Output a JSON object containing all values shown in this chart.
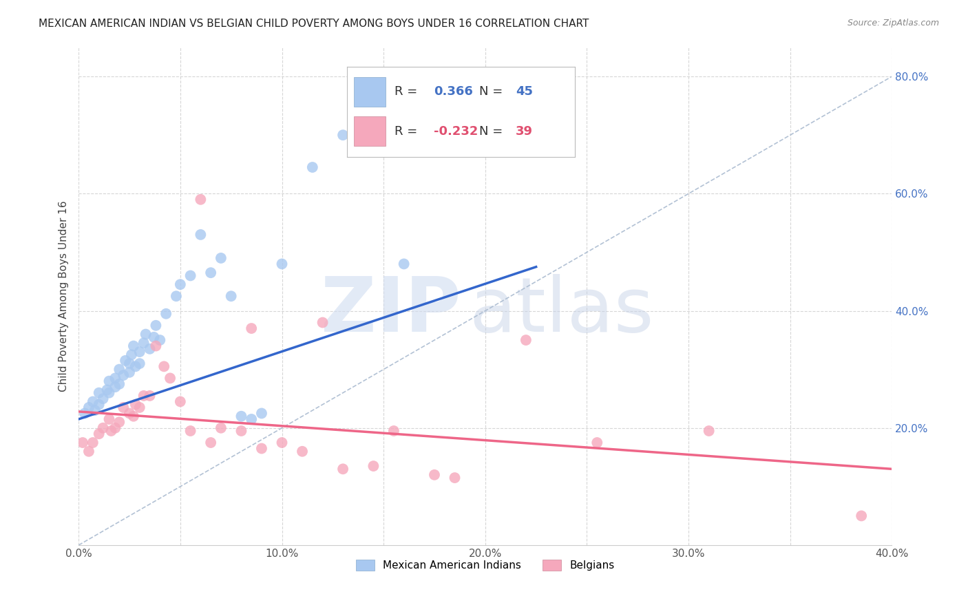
{
  "title": "MEXICAN AMERICAN INDIAN VS BELGIAN CHILD POVERTY AMONG BOYS UNDER 16 CORRELATION CHART",
  "source": "Source: ZipAtlas.com",
  "ylabel": "Child Poverty Among Boys Under 16",
  "xlim": [
    0.0,
    0.4
  ],
  "ylim": [
    0.0,
    0.85
  ],
  "xtick_labels": [
    "0.0%",
    "",
    "10.0%",
    "",
    "20.0%",
    "",
    "30.0%",
    "",
    "40.0%"
  ],
  "xtick_vals": [
    0.0,
    0.05,
    0.1,
    0.15,
    0.2,
    0.25,
    0.3,
    0.35,
    0.4
  ],
  "ytick_labels": [
    "20.0%",
    "40.0%",
    "60.0%",
    "80.0%"
  ],
  "ytick_vals": [
    0.2,
    0.4,
    0.6,
    0.8
  ],
  "blue_R": "0.366",
  "blue_N": "45",
  "pink_R": "-0.232",
  "pink_N": "39",
  "blue_color": "#A8C8F0",
  "pink_color": "#F5A8BC",
  "blue_line_color": "#3366CC",
  "pink_line_color": "#EE6688",
  "dashed_line_color": "#AABBD0",
  "watermark_zip": "ZIP",
  "watermark_atlas": "atlas",
  "legend_label_blue": "Mexican American Indians",
  "legend_label_pink": "Belgians",
  "blue_scatter_x": [
    0.003,
    0.005,
    0.007,
    0.008,
    0.01,
    0.01,
    0.012,
    0.014,
    0.015,
    0.015,
    0.018,
    0.018,
    0.02,
    0.02,
    0.022,
    0.023,
    0.025,
    0.025,
    0.026,
    0.027,
    0.028,
    0.03,
    0.03,
    0.032,
    0.033,
    0.035,
    0.037,
    0.038,
    0.04,
    0.043,
    0.048,
    0.05,
    0.055,
    0.06,
    0.065,
    0.07,
    0.075,
    0.08,
    0.085,
    0.09,
    0.1,
    0.115,
    0.13,
    0.16,
    0.215
  ],
  "blue_scatter_y": [
    0.225,
    0.235,
    0.245,
    0.23,
    0.24,
    0.26,
    0.25,
    0.265,
    0.26,
    0.28,
    0.27,
    0.285,
    0.275,
    0.3,
    0.29,
    0.315,
    0.295,
    0.31,
    0.325,
    0.34,
    0.305,
    0.31,
    0.33,
    0.345,
    0.36,
    0.335,
    0.355,
    0.375,
    0.35,
    0.395,
    0.425,
    0.445,
    0.46,
    0.53,
    0.465,
    0.49,
    0.425,
    0.22,
    0.215,
    0.225,
    0.48,
    0.645,
    0.7,
    0.48,
    0.68
  ],
  "pink_scatter_x": [
    0.002,
    0.005,
    0.007,
    0.01,
    0.012,
    0.015,
    0.016,
    0.018,
    0.02,
    0.022,
    0.025,
    0.027,
    0.028,
    0.03,
    0.032,
    0.035,
    0.038,
    0.042,
    0.045,
    0.05,
    0.055,
    0.06,
    0.065,
    0.07,
    0.08,
    0.085,
    0.09,
    0.1,
    0.11,
    0.12,
    0.13,
    0.145,
    0.155,
    0.175,
    0.185,
    0.22,
    0.255,
    0.31,
    0.385
  ],
  "pink_scatter_y": [
    0.175,
    0.16,
    0.175,
    0.19,
    0.2,
    0.215,
    0.195,
    0.2,
    0.21,
    0.235,
    0.225,
    0.22,
    0.24,
    0.235,
    0.255,
    0.255,
    0.34,
    0.305,
    0.285,
    0.245,
    0.195,
    0.59,
    0.175,
    0.2,
    0.195,
    0.37,
    0.165,
    0.175,
    0.16,
    0.38,
    0.13,
    0.135,
    0.195,
    0.12,
    0.115,
    0.35,
    0.175,
    0.195,
    0.05
  ],
  "blue_line_x": [
    0.0,
    0.225
  ],
  "blue_line_y": [
    0.215,
    0.475
  ],
  "pink_line_x": [
    0.0,
    0.4
  ],
  "pink_line_y": [
    0.228,
    0.13
  ],
  "dashed_line_x": [
    0.0,
    0.4
  ],
  "dashed_line_y": [
    0.0,
    0.8
  ],
  "background_color": "#FFFFFF",
  "grid_color": "#CCCCCC"
}
